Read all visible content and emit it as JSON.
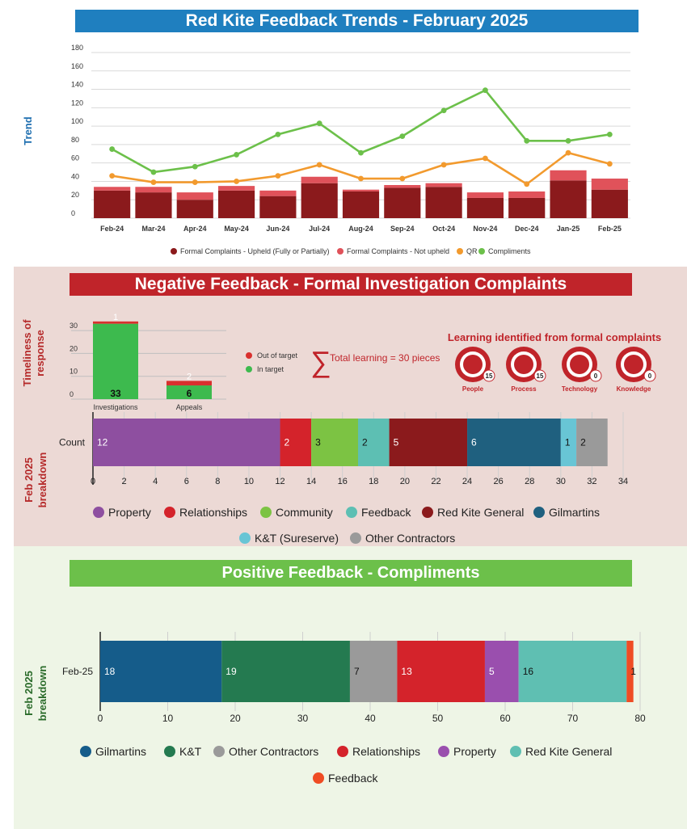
{
  "colors": {
    "upheld": "#8b1a1c",
    "not_upheld": "#e0525a",
    "qr": "#f29a2e",
    "compliments": "#6cc04a",
    "in_target": "#3dba4e",
    "out_target": "#d9302e",
    "property": "#8e4fa0",
    "relationships": "#d4232b",
    "community": "#7cc343",
    "feedback_neg": "#5dbfb3",
    "rk_general_neg": "#8b1a1c",
    "gilmartins": "#1f607f",
    "kt_sureserve": "#68c5d5",
    "other_contractors": "#9a9a9a",
    "gilmartins_pos": "#155c8a",
    "kt_pos": "#247a50",
    "other_pos": "#9a9a9a",
    "relationships_pos": "#d4232b",
    "property_pos": "#9a4fae",
    "rk_general_pos": "#5fbfb2",
    "feedback_pos": "#ef4c24"
  },
  "banners": {
    "trend_title": "Red Kite Feedback Trends - February 2025",
    "negative_title": "Negative Feedback - Formal Investigation Complaints",
    "positive_title": "Positive Feedback - Compliments"
  },
  "side_labels": {
    "trend": "Trend",
    "timeliness_1": "Timeliness of",
    "timeliness_2": "response",
    "breakdown_1": "Feb 2025",
    "breakdown_2": "breakdown"
  },
  "learning": {
    "sum_symbol": "∑",
    "total_text": "Total learning = 30 pieces",
    "title": "Learning identified from formal complaints",
    "items": [
      {
        "label": "People",
        "count": "15",
        "icon": "person-icon"
      },
      {
        "label": "Process",
        "count": "15",
        "icon": "share-icon"
      },
      {
        "label": "Technology",
        "count": "0",
        "icon": "laptop-icon"
      },
      {
        "label": "Knowledge",
        "count": "0",
        "icon": "brain-icon"
      }
    ]
  },
  "chart_data": [
    {
      "type": "bar+line",
      "categories": [
        "Feb-24",
        "Mar-24",
        "Apr-24",
        "May-24",
        "Jun-24",
        "Jul-24",
        "Aug-24",
        "Sep-24",
        "Oct-24",
        "Nov-24",
        "Dec-24",
        "Jan-25",
        "Feb-25"
      ],
      "series": [
        {
          "name": "Formal Complaints - Upheld (Fully or Partially)",
          "kind": "bar",
          "values": [
            30,
            28,
            20,
            30,
            24,
            38,
            29,
            33,
            34,
            22,
            22,
            41,
            31
          ]
        },
        {
          "name": "Formal Complaints - Not upheld",
          "kind": "bar",
          "values": [
            4,
            6,
            8,
            5,
            6,
            7,
            2,
            3,
            4,
            6,
            7,
            11,
            12
          ]
        },
        {
          "name": "QR",
          "kind": "line",
          "values": [
            46,
            39,
            39,
            40,
            46,
            58,
            43,
            43,
            58,
            65,
            37,
            71,
            59
          ]
        },
        {
          "name": "Compliments",
          "kind": "line",
          "values": [
            75,
            50,
            56,
            69,
            91,
            103,
            71,
            89,
            117,
            139,
            84,
            84,
            91
          ]
        }
      ],
      "yticks": [
        0,
        20,
        40,
        60,
        80,
        100,
        120,
        140,
        160,
        180
      ],
      "ylim": [
        0,
        180
      ]
    },
    {
      "type": "stacked-bar",
      "categories": [
        "Investigations",
        "Appeals"
      ],
      "series": [
        {
          "name": "In target",
          "values": [
            33,
            6
          ]
        },
        {
          "name": "Out of target",
          "values": [
            1,
            2
          ]
        }
      ],
      "yticks": [
        0,
        10,
        20,
        30
      ],
      "ylim": [
        0,
        35
      ]
    },
    {
      "type": "horizontal-stacked-bar",
      "category": "Count",
      "segments": [
        {
          "name": "Property",
          "value": 12
        },
        {
          "name": "Relationships",
          "value": 2
        },
        {
          "name": "Community",
          "value": 3
        },
        {
          "name": "Feedback",
          "value": 2
        },
        {
          "name": "Red Kite General",
          "value": 5
        },
        {
          "name": "Gilmartins",
          "value": 6
        },
        {
          "name": "K&T (Sureserve)",
          "value": 1
        },
        {
          "name": "Other Contractors",
          "value": 2
        }
      ],
      "xticks": [
        0,
        2,
        4,
        6,
        8,
        10,
        12,
        14,
        16,
        18,
        20,
        22,
        24,
        26,
        28,
        30,
        32,
        34
      ],
      "xlim": [
        0,
        34
      ]
    },
    {
      "type": "horizontal-stacked-bar",
      "category": "Feb-25",
      "segments": [
        {
          "name": "Gilmartins",
          "value": 18
        },
        {
          "name": "K&T",
          "value": 19
        },
        {
          "name": "Other Contractors",
          "value": 7
        },
        {
          "name": "Relationships",
          "value": 13
        },
        {
          "name": "Property",
          "value": 5
        },
        {
          "name": "Red Kite General",
          "value": 16
        },
        {
          "name": "Feedback",
          "value": 1
        }
      ],
      "xticks": [
        0,
        10,
        20,
        30,
        40,
        50,
        60,
        70,
        80
      ],
      "xlim": [
        0,
        80
      ]
    }
  ]
}
